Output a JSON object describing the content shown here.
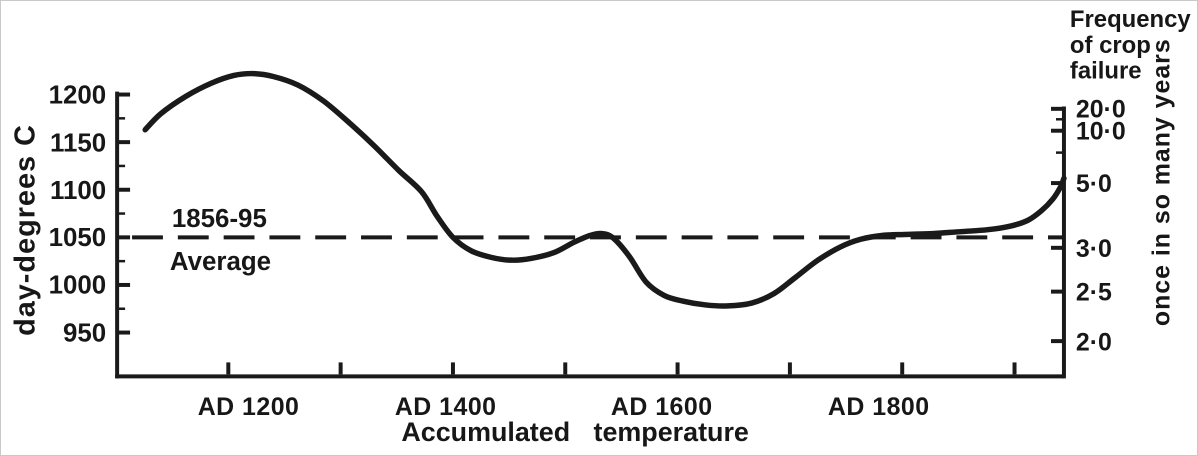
{
  "figure": {
    "left_axis_label": "day-degrees C",
    "right_axis_title_lines": [
      "Frequency",
      "of crop",
      "failure"
    ],
    "right_axis_label": "once in so many years",
    "reference_label_top": "1856-95",
    "reference_label_bottom": "Average",
    "caption": "Accumulated  temperature"
  },
  "chart_data": {
    "type": "line",
    "title": "",
    "xlabel": "Accumulated  temperature",
    "ylabel_left": "day-degrees C",
    "ylabel_right": "once in so many years",
    "right_axis_title": "Frequency of crop failure",
    "grid": false,
    "x_range_years": [
      1101,
      1944
    ],
    "y_range_day_degrees": [
      904,
      1201
    ],
    "x_ticks_years": [
      1200,
      1300,
      1400,
      1500,
      1600,
      1700,
      1800,
      1900
    ],
    "x_tick_labels": [
      {
        "year": 1200,
        "label": "AD 1200"
      },
      {
        "year": 1400,
        "label": "AD 1400"
      },
      {
        "year": 1600,
        "label": "AD 1600"
      },
      {
        "year": 1800,
        "label": "AD 1800"
      }
    ],
    "y_left_ticks": [
      {
        "value": 1200,
        "label": "1200"
      },
      {
        "value": 1150,
        "label": "1150"
      },
      {
        "value": 1100,
        "label": "1100"
      },
      {
        "value": 1050,
        "label": "1050"
      },
      {
        "value": 1000,
        "label": "1000"
      },
      {
        "value": 950,
        "label": "950"
      }
    ],
    "y_left_minor_ticks": [
      1175,
      1125,
      1075,
      1025,
      975
    ],
    "y_right_ticks": [
      {
        "label": "20·0",
        "day_degrees": 1185
      },
      {
        "label": "10·0",
        "day_degrees": 1162
      },
      {
        "label": "5·0",
        "day_degrees": 1107
      },
      {
        "label": "3·0",
        "day_degrees": 1039
      },
      {
        "label": "2·5",
        "day_degrees": 993
      },
      {
        "label": "2·0",
        "day_degrees": 941
      }
    ],
    "y_right_minor_ticks_day_degrees": [
      1174,
      1139
    ],
    "reference_line": {
      "day_degrees": 1050,
      "style": "long-dash",
      "label": "1856-95 Average"
    },
    "series": [
      {
        "name": "Accumulated temperature",
        "points": [
          [
            1126,
            1163
          ],
          [
            1140,
            1180
          ],
          [
            1162,
            1198
          ],
          [
            1185,
            1212
          ],
          [
            1205,
            1220
          ],
          [
            1222,
            1222
          ],
          [
            1240,
            1219
          ],
          [
            1262,
            1210
          ],
          [
            1285,
            1193
          ],
          [
            1308,
            1170
          ],
          [
            1330,
            1146
          ],
          [
            1352,
            1120
          ],
          [
            1372,
            1098
          ],
          [
            1386,
            1072
          ],
          [
            1400,
            1050
          ],
          [
            1416,
            1036
          ],
          [
            1434,
            1029
          ],
          [
            1452,
            1026
          ],
          [
            1470,
            1028
          ],
          [
            1490,
            1034
          ],
          [
            1508,
            1045
          ],
          [
            1522,
            1052
          ],
          [
            1533,
            1054
          ],
          [
            1543,
            1049
          ],
          [
            1557,
            1030
          ],
          [
            1572,
            1003
          ],
          [
            1588,
            989
          ],
          [
            1605,
            983
          ],
          [
            1625,
            979
          ],
          [
            1645,
            978
          ],
          [
            1666,
            981
          ],
          [
            1686,
            991
          ],
          [
            1705,
            1008
          ],
          [
            1725,
            1026
          ],
          [
            1745,
            1040
          ],
          [
            1763,
            1048
          ],
          [
            1782,
            1052
          ],
          [
            1802,
            1053
          ],
          [
            1827,
            1054
          ],
          [
            1852,
            1056
          ],
          [
            1876,
            1058
          ],
          [
            1897,
            1062
          ],
          [
            1912,
            1068
          ],
          [
            1924,
            1078
          ],
          [
            1934,
            1090
          ],
          [
            1941,
            1103
          ],
          [
            1944,
            1112
          ]
        ]
      }
    ],
    "colors": {
      "ink": "#1a1a1a",
      "background": "#ffffff"
    }
  }
}
